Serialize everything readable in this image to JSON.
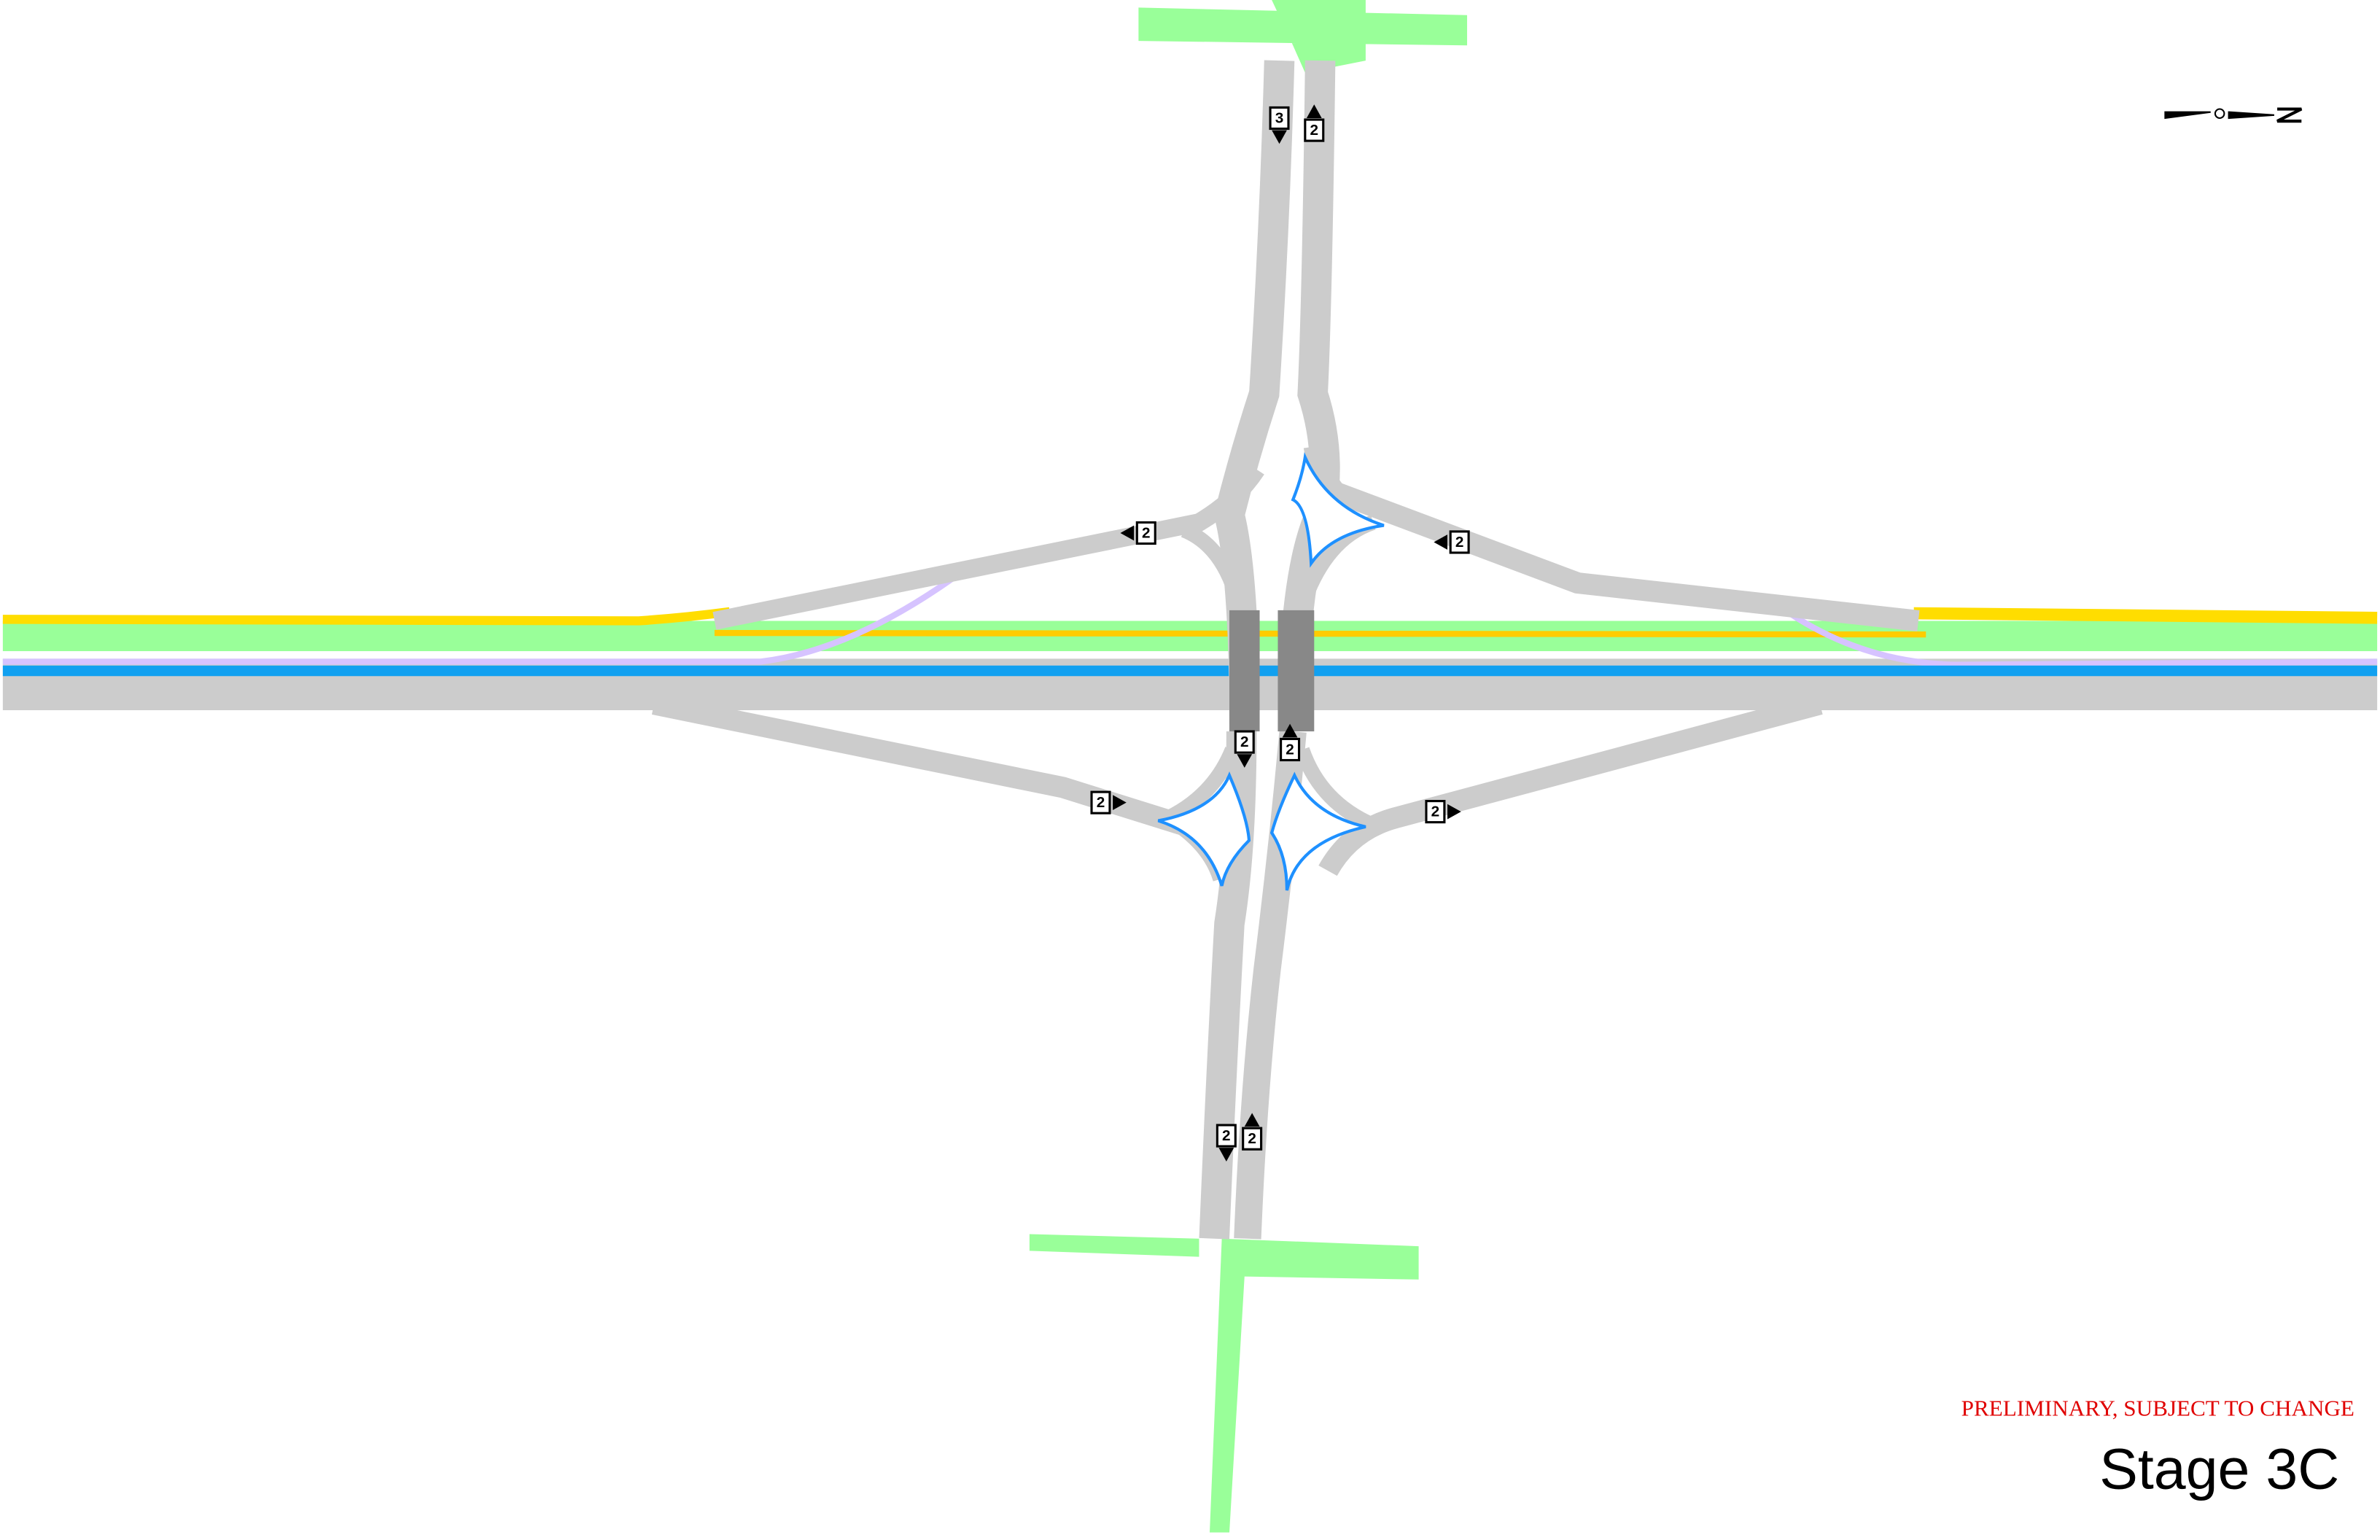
{
  "notice": "PRELIMINARY, SUBJECT TO CHANGE",
  "title": "Stage 3C",
  "lane_markers": [
    {
      "label": "3"
    },
    {
      "label": "2"
    },
    {
      "label": "2"
    },
    {
      "label": "2"
    },
    {
      "label": "2"
    },
    {
      "label": "2"
    },
    {
      "label": "2"
    },
    {
      "label": "2"
    },
    {
      "label": "2"
    },
    {
      "label": "2"
    }
  ]
}
